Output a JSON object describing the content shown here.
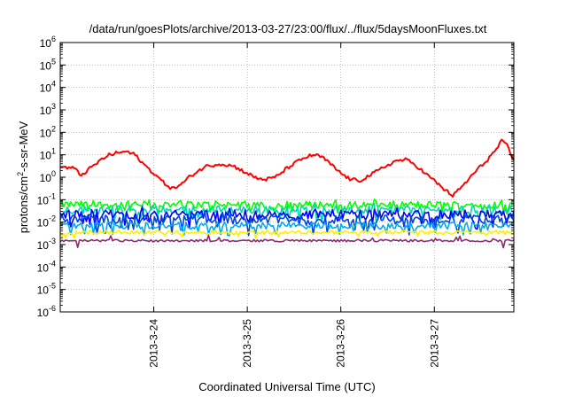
{
  "chart_data": {
    "type": "line",
    "title": "/data/run/goesPlots/archive/2013-03-27/23:00/flux/../flux/5daysMoonFluxes.txt",
    "xlabel": "Coordinated Universal Time (UTC)",
    "ylabel": "protons/cm²-s-sr-MeV",
    "ylabel_parts": {
      "pre": "protons/cm",
      "sup": "2",
      "post": "-s-sr-MeV"
    },
    "y_scale": "log",
    "ylim": [
      1e-06,
      1000000.0
    ],
    "y_ticks": [
      {
        "value": 1000000.0,
        "base": "10",
        "exp": "6"
      },
      {
        "value": 100000.0,
        "base": "10",
        "exp": "5"
      },
      {
        "value": 10000.0,
        "base": "10",
        "exp": "4"
      },
      {
        "value": 1000.0,
        "base": "10",
        "exp": "3"
      },
      {
        "value": 100.0,
        "base": "10",
        "exp": "2"
      },
      {
        "value": 10.0,
        "base": "10",
        "exp": "1"
      },
      {
        "value": 1.0,
        "base": "10",
        "exp": "0"
      },
      {
        "value": 0.1,
        "base": "10",
        "exp": "-1"
      },
      {
        "value": 0.01,
        "base": "10",
        "exp": "-2"
      },
      {
        "value": 0.001,
        "base": "10",
        "exp": "-3"
      },
      {
        "value": 0.0001,
        "base": "10",
        "exp": "-4"
      },
      {
        "value": 1e-05,
        "base": "10",
        "exp": "-5"
      },
      {
        "value": 1e-06,
        "base": "10",
        "exp": "-6"
      }
    ],
    "xlim_days": [
      0,
      4.85
    ],
    "x_ticks": [
      {
        "label": "2013-3-24",
        "day": 1
      },
      {
        "label": "2013-3-25",
        "day": 2
      },
      {
        "label": "2013-3-26",
        "day": 3
      },
      {
        "label": "2013-3-27",
        "day": 4
      }
    ],
    "grid": true,
    "legend": "none",
    "series": [
      {
        "color": "#ff0000",
        "style": "smooth",
        "points": [
          [
            0,
            2.9
          ],
          [
            0.15,
            2.5
          ],
          [
            0.22,
            1.2
          ],
          [
            0.4,
            4.5
          ],
          [
            0.5,
            9
          ],
          [
            0.6,
            12
          ],
          [
            0.7,
            14
          ],
          [
            0.8,
            10
          ],
          [
            0.9,
            3.5
          ],
          [
            1.0,
            1.5
          ],
          [
            1.1,
            0.6
          ],
          [
            1.2,
            0.3
          ],
          [
            1.3,
            0.5
          ],
          [
            1.4,
            1.2
          ],
          [
            1.55,
            3.0
          ],
          [
            1.7,
            4.0
          ],
          [
            1.85,
            3.2
          ],
          [
            2.0,
            1.5
          ],
          [
            2.1,
            0.9
          ],
          [
            2.2,
            0.8
          ],
          [
            2.3,
            1.0
          ],
          [
            2.45,
            3.0
          ],
          [
            2.6,
            7.0
          ],
          [
            2.7,
            10
          ],
          [
            2.8,
            8
          ],
          [
            2.9,
            3.5
          ],
          [
            3.0,
            1.5
          ],
          [
            3.1,
            0.8
          ],
          [
            3.2,
            0.7
          ],
          [
            3.35,
            1.5
          ],
          [
            3.5,
            3.5
          ],
          [
            3.6,
            5.5
          ],
          [
            3.7,
            6.0
          ],
          [
            3.8,
            3.5
          ],
          [
            3.9,
            1.5
          ],
          [
            4.0,
            0.7
          ],
          [
            4.1,
            0.3
          ],
          [
            4.2,
            0.15
          ],
          [
            4.3,
            0.4
          ],
          [
            4.45,
            2.0
          ],
          [
            4.55,
            5.0
          ],
          [
            4.65,
            15
          ],
          [
            4.72,
            40
          ],
          [
            4.78,
            25
          ],
          [
            4.85,
            5
          ],
          [
            4.9,
            2
          ],
          [
            4.95,
            0.9
          ]
        ],
        "noise": 0.08,
        "spike_prob": 0.0,
        "spike_drop": 0
      },
      {
        "color": "#00ff00",
        "style": "noisy",
        "base": 0.06,
        "noise": 0.16,
        "spike_prob": 0.1,
        "spike_drop": 0.35
      },
      {
        "color": "#00d8b0",
        "style": "noisy",
        "base": 0.035,
        "noise": 0.18,
        "spike_prob": 0.12,
        "spike_drop": 0.45
      },
      {
        "color": "#0000ff",
        "style": "noisy",
        "base": 0.022,
        "noise": 0.2,
        "spike_prob": 0.14,
        "spike_drop": 0.5
      },
      {
        "color": "#0044dd",
        "style": "noisy",
        "base": 0.013,
        "noise": 0.2,
        "spike_prob": 0.14,
        "spike_drop": 0.55
      },
      {
        "color": "#00aaee",
        "style": "noisy",
        "base": 0.007,
        "noise": 0.15,
        "spike_prob": 0.1,
        "spike_drop": 0.4
      },
      {
        "color": "#ffee00",
        "style": "noisy",
        "base": 0.0035,
        "noise": 0.08,
        "spike_prob": 0.04,
        "spike_drop": 0.25
      },
      {
        "color": "#8b2c6b",
        "style": "noisy",
        "base": 0.0015,
        "noise": 0.05,
        "spike_prob": 0.02,
        "spike_drop": 0.6
      }
    ]
  }
}
